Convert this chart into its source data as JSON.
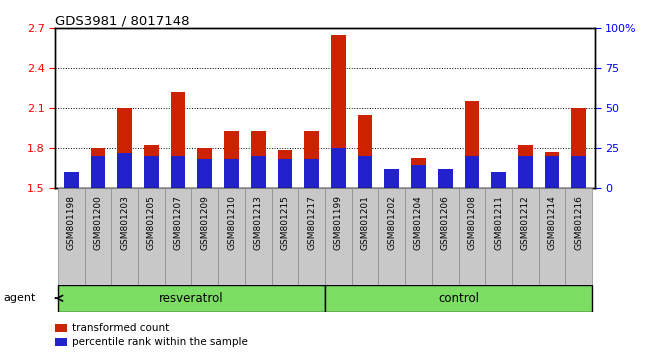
{
  "title": "GDS3981 / 8017148",
  "samples": [
    "GSM801198",
    "GSM801200",
    "GSM801203",
    "GSM801205",
    "GSM801207",
    "GSM801209",
    "GSM801210",
    "GSM801213",
    "GSM801215",
    "GSM801217",
    "GSM801199",
    "GSM801201",
    "GSM801202",
    "GSM801204",
    "GSM801206",
    "GSM801208",
    "GSM801211",
    "GSM801212",
    "GSM801214",
    "GSM801216"
  ],
  "transformed_count": [
    1.62,
    1.8,
    2.1,
    1.82,
    2.22,
    1.8,
    1.93,
    1.93,
    1.78,
    1.93,
    2.65,
    2.05,
    1.62,
    1.72,
    1.62,
    2.15,
    1.55,
    1.82,
    1.77,
    2.1
  ],
  "percentile_rank_pct": [
    10,
    20,
    22,
    20,
    20,
    18,
    18,
    20,
    18,
    18,
    25,
    20,
    12,
    14,
    12,
    20,
    10,
    20,
    20,
    20
  ],
  "groups": [
    {
      "label": "resveratrol",
      "start": 0,
      "end": 10,
      "color": "#7cdf64"
    },
    {
      "label": "control",
      "start": 10,
      "end": 20,
      "color": "#7cdf64"
    }
  ],
  "ylim_left": [
    1.5,
    2.7
  ],
  "ylim_right": [
    0,
    100
  ],
  "yticks_left": [
    1.5,
    1.8,
    2.1,
    2.4,
    2.7
  ],
  "yticks_right": [
    0,
    25,
    50,
    75,
    100
  ],
  "bar_color_red": "#cc2200",
  "bar_color_blue": "#2222cc",
  "base_value": 1.5,
  "bar_width": 0.55,
  "background_color": "#c8c8c8",
  "agent_label": "agent",
  "legend_items": [
    {
      "color": "#cc2200",
      "label": "transformed count"
    },
    {
      "color": "#2222cc",
      "label": "percentile rank within the sample"
    }
  ]
}
